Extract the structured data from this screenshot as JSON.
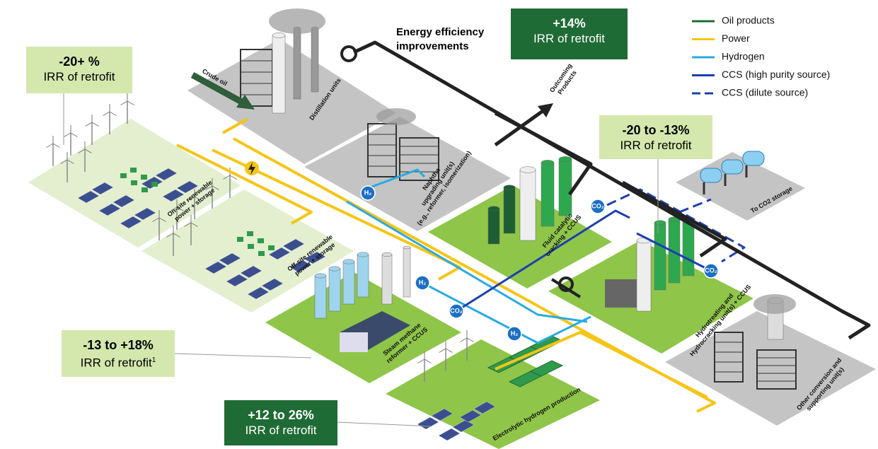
{
  "callouts": [
    {
      "value": "-20+ %",
      "label": "IRR of retrofit"
    },
    {
      "value": "+14%",
      "label": "IRR of retrofit"
    },
    {
      "value": "-20 to -13%",
      "label": "IRR of retrofit"
    },
    {
      "value": "-13 to +18%",
      "label": "IRR of retrofit",
      "footnote": "1"
    },
    {
      "value": "+12 to 26%",
      "label": "IRR of retrofit"
    }
  ],
  "energy_efficiency": "Energy efficiency improvements",
  "legend": [
    "Oil products",
    "Power",
    "Hydrogen",
    "CCS (high purity source)",
    "CCS (dilute source)"
  ],
  "crude_oil": "Crude oil",
  "outcoming_products": [
    "Outcoming",
    "Products"
  ],
  "units": [
    {
      "label": [
        "Distillation units"
      ]
    },
    {
      "label": [
        "Naphtha",
        "upgrading unit(s)",
        "(e.g., reformer, isomerization)"
      ]
    },
    {
      "label": [
        "On-site renewable",
        "power + storage"
      ]
    },
    {
      "label": [
        "Off-site renewable",
        "power + storage"
      ]
    },
    {
      "label": [
        "Fluid catalytic",
        "cracking + CCUS"
      ]
    },
    {
      "label": [
        "To CO2 storage"
      ]
    },
    {
      "label": [
        "Steam methane",
        "reformer + CCUS"
      ]
    },
    {
      "label": [
        "Hydrotreating and",
        "Hydrocracking unit(s) + CCUS"
      ]
    },
    {
      "label": [
        "Electrolytic hydrogen production"
      ]
    },
    {
      "label": [
        "Other conversion and",
        "supporting unit(s)"
      ]
    }
  ],
  "badges": {
    "hydrogen": "H₂",
    "co2": "CO₂"
  }
}
